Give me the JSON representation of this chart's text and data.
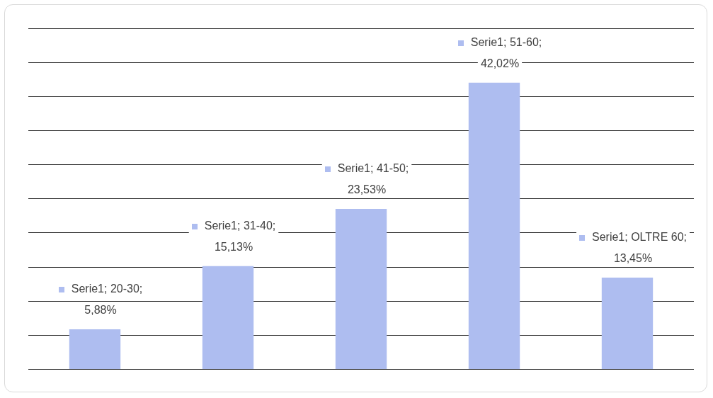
{
  "chart_data": {
    "type": "bar",
    "categories": [
      null,
      null,
      null,
      null,
      null
    ],
    "series": [
      {
        "color": "#aebdf0",
        "values": [
          5.88,
          15.13,
          23.53,
          42.02,
          13.45
        ],
        "value_labels": [
          "Serie1; 20-30; 5,88%",
          "Serie1; 31-40; 15,13%",
          "Serie1; 41-50; 23,53%",
          "Serie1; 51-60; 42,02%",
          "Serie1; OLTRE 60; 13,45%"
        ]
      }
    ],
    "ylim": [
      0,
      50
    ],
    "yticks": [
      {
        "value": 0,
        "label": null
      },
      {
        "value": 5,
        "label": null
      },
      {
        "value": 10,
        "label": null
      },
      {
        "value": 15,
        "label": null
      },
      {
        "value": 20,
        "label": null
      },
      {
        "value": 25,
        "label": null
      },
      {
        "value": 30,
        "label": null
      },
      {
        "value": 35,
        "label": null
      },
      {
        "value": 40,
        "label": null
      },
      {
        "value": 45,
        "label": null
      },
      {
        "value": 50,
        "label": null
      }
    ],
    "grid": "y"
  }
}
